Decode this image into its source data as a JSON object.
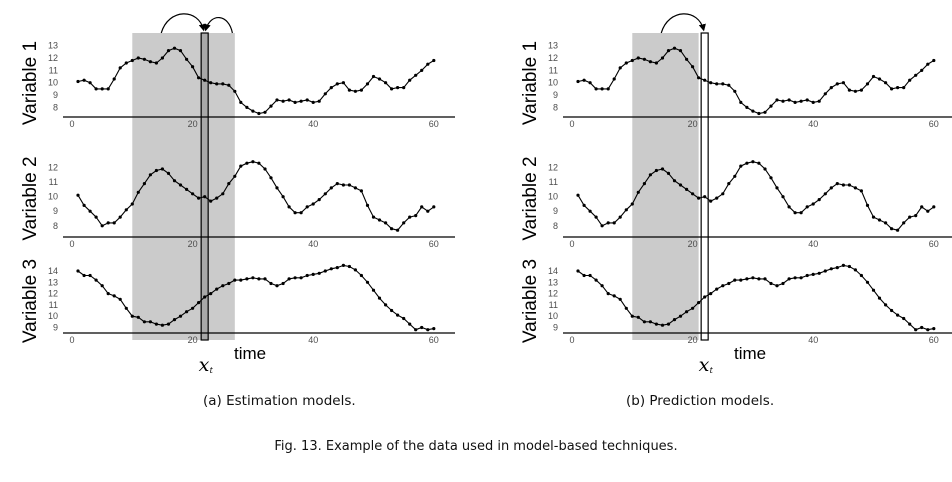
{
  "figure": {
    "caption": "Fig. 13.  Example of the data used in model-based techniques.",
    "estimated_model_time_label": "time",
    "window_marker": "x",
    "window_marker_sub": "t"
  },
  "chart_data": [
    {
      "type": "line",
      "panel_caption": "(a) Estimation models.",
      "shaded_window": [
        10,
        27
      ],
      "target_index": 22,
      "arrows": "target to both neighbors",
      "xlabel": "time",
      "series": [
        {
          "name": "Variable 1",
          "ylim": [
            7.3,
            13.3
          ],
          "yticks": [
            8,
            9,
            10,
            11,
            12,
            13
          ],
          "xticks": [
            0,
            20,
            40,
            60
          ],
          "x": [
            1,
            2,
            3,
            4,
            5,
            6,
            7,
            8,
            9,
            10,
            11,
            12,
            13,
            14,
            15,
            16,
            17,
            18,
            19,
            20,
            21,
            22,
            23,
            24,
            25,
            26,
            27,
            28,
            29,
            30,
            31,
            32,
            33,
            34,
            35,
            36,
            37,
            38,
            39,
            40,
            41,
            42,
            43,
            44,
            45,
            46,
            47,
            48,
            49,
            50,
            51,
            52,
            53,
            54,
            55,
            56,
            57,
            58,
            59,
            60
          ],
          "values": [
            10.1,
            10.2,
            10.0,
            9.5,
            9.5,
            9.5,
            10.3,
            11.2,
            11.6,
            11.8,
            12.0,
            11.9,
            11.7,
            11.6,
            12.0,
            12.6,
            12.8,
            12.6,
            11.9,
            11.3,
            10.4,
            10.2,
            10.0,
            9.9,
            9.9,
            9.8,
            9.3,
            8.4,
            8.0,
            7.7,
            7.5,
            7.6,
            8.1,
            8.6,
            8.5,
            8.6,
            8.4,
            8.5,
            8.6,
            8.4,
            8.5,
            9.1,
            9.6,
            9.9,
            10.0,
            9.4,
            9.3,
            9.4,
            9.9,
            10.5,
            10.3,
            10.0,
            9.5,
            9.6,
            9.6,
            10.2,
            10.6,
            11.0,
            11.5,
            11.8
          ]
        },
        {
          "name": "Variable 2",
          "ylim": [
            7.3,
            13.0
          ],
          "yticks": [
            8,
            9,
            10,
            11,
            12
          ],
          "xticks": [
            0,
            20,
            40,
            60
          ],
          "x": [
            1,
            2,
            3,
            4,
            5,
            6,
            7,
            8,
            9,
            10,
            11,
            12,
            13,
            14,
            15,
            16,
            17,
            18,
            19,
            20,
            21,
            22,
            23,
            24,
            25,
            26,
            27,
            28,
            29,
            30,
            31,
            32,
            33,
            34,
            35,
            36,
            37,
            38,
            39,
            40,
            41,
            42,
            43,
            44,
            45,
            46,
            47,
            48,
            49,
            50,
            51,
            52,
            53,
            54,
            55,
            56,
            57,
            58,
            59,
            60
          ],
          "values": [
            10.1,
            9.4,
            9.0,
            8.6,
            8.0,
            8.2,
            8.2,
            8.6,
            9.1,
            9.5,
            10.3,
            10.9,
            11.5,
            11.8,
            11.9,
            11.6,
            11.1,
            10.8,
            10.5,
            10.2,
            9.9,
            10.0,
            9.7,
            9.9,
            10.2,
            10.9,
            11.4,
            12.1,
            12.3,
            12.4,
            12.3,
            11.9,
            11.3,
            10.6,
            10.0,
            9.3,
            8.9,
            8.9,
            9.3,
            9.5,
            9.8,
            10.2,
            10.6,
            10.9,
            10.8,
            10.8,
            10.6,
            10.4,
            9.4,
            8.6,
            8.4,
            8.2,
            7.8,
            7.7,
            8.2,
            8.6,
            8.7,
            9.3,
            9.0,
            9.3
          ]
        },
        {
          "name": "Variable 3",
          "ylim": [
            8.6,
            14.8
          ],
          "yticks": [
            9,
            10,
            11,
            12,
            13,
            14
          ],
          "xticks": [
            0,
            20,
            40,
            60
          ],
          "x": [
            1,
            2,
            3,
            4,
            5,
            6,
            7,
            8,
            9,
            10,
            11,
            12,
            13,
            14,
            15,
            16,
            17,
            18,
            19,
            20,
            21,
            22,
            23,
            24,
            25,
            26,
            27,
            28,
            29,
            30,
            31,
            32,
            33,
            34,
            35,
            36,
            37,
            38,
            39,
            40,
            41,
            42,
            43,
            44,
            45,
            46,
            47,
            48,
            49,
            50,
            51,
            52,
            53,
            54,
            55,
            56,
            57,
            58,
            59,
            60
          ],
          "values": [
            14.0,
            13.6,
            13.6,
            13.2,
            12.7,
            12.0,
            11.8,
            11.5,
            10.7,
            10.0,
            9.9,
            9.5,
            9.5,
            9.3,
            9.2,
            9.3,
            9.7,
            10.0,
            10.4,
            10.7,
            11.2,
            11.7,
            12.0,
            12.4,
            12.7,
            12.9,
            13.2,
            13.2,
            13.3,
            13.4,
            13.3,
            13.3,
            12.9,
            12.7,
            12.9,
            13.3,
            13.4,
            13.4,
            13.6,
            13.7,
            13.8,
            14.0,
            14.2,
            14.3,
            14.5,
            14.4,
            14.1,
            13.6,
            13.0,
            12.3,
            11.6,
            11.0,
            10.5,
            10.1,
            9.8,
            9.3,
            8.8,
            9.0,
            8.8,
            8.9
          ]
        }
      ]
    },
    {
      "type": "line",
      "panel_caption": "(b) Prediction models.",
      "shaded_window": [
        10,
        21
      ],
      "target_index": 22,
      "arrows": "window to target",
      "xlabel": "time",
      "series_same_as_panel_a": true
    }
  ]
}
